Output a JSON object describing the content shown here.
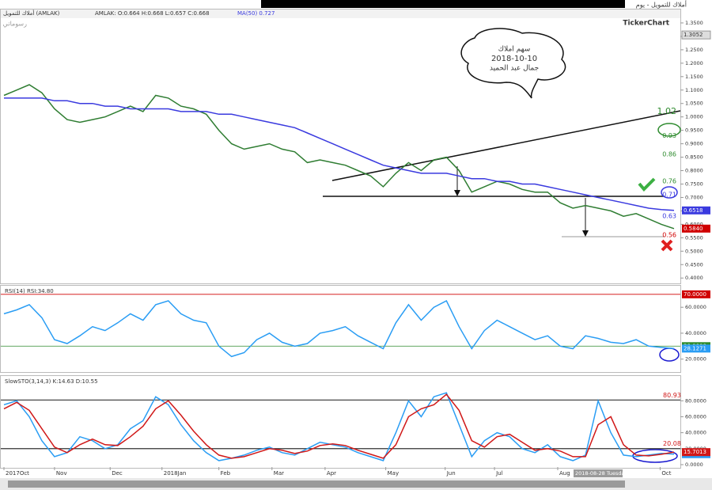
{
  "window": {
    "title": "أملاك للتمويل - يوم",
    "logo": "TickerChart",
    "drawings_tab": "رسوماتي",
    "symbol": "أملاك للتمويل (AMLAK)",
    "cursor_label": "2018-08-28 Tuesday"
  },
  "note": {
    "lines": [
      "سهم املاك",
      "2018-10-10",
      "جمال عبد الحميد"
    ]
  },
  "chart_data": [
    {
      "type": "line",
      "title": "AMLAK: O:0.664 H:0.668 L:0.657 C:0.668",
      "subtitle": "MA(50)  0.727",
      "series": [
        {
          "name": "AMLAK",
          "color": "#2f7d32",
          "values": [
            1.08,
            1.1,
            1.12,
            1.09,
            1.03,
            0.99,
            0.98,
            0.99,
            1.0,
            1.02,
            1.04,
            1.02,
            1.08,
            1.07,
            1.04,
            1.03,
            1.01,
            0.95,
            0.9,
            0.88,
            0.89,
            0.9,
            0.88,
            0.87,
            0.83,
            0.84,
            0.83,
            0.82,
            0.8,
            0.78,
            0.74,
            0.79,
            0.83,
            0.8,
            0.84,
            0.85,
            0.8,
            0.72,
            0.74,
            0.76,
            0.75,
            0.73,
            0.72,
            0.72,
            0.68,
            0.66,
            0.67,
            0.66,
            0.65,
            0.63,
            0.64,
            0.62,
            0.6,
            0.584
          ],
          "last_label": "0.5840",
          "badge": "#d00000"
        },
        {
          "name": "MA(50)",
          "color": "#3a3adf",
          "values": [
            1.07,
            1.07,
            1.07,
            1.07,
            1.06,
            1.06,
            1.05,
            1.05,
            1.04,
            1.04,
            1.03,
            1.03,
            1.03,
            1.03,
            1.02,
            1.02,
            1.02,
            1.01,
            1.01,
            1.0,
            0.99,
            0.98,
            0.97,
            0.96,
            0.94,
            0.92,
            0.9,
            0.88,
            0.86,
            0.84,
            0.82,
            0.81,
            0.8,
            0.79,
            0.79,
            0.79,
            0.78,
            0.77,
            0.77,
            0.76,
            0.76,
            0.75,
            0.75,
            0.74,
            0.73,
            0.72,
            0.71,
            0.7,
            0.69,
            0.68,
            0.67,
            0.66,
            0.655,
            0.6518
          ],
          "badge": "#3a3adf"
        }
      ],
      "ylim": [
        0.38,
        1.4
      ],
      "yticks": [
        {
          "value": 0.4,
          "label": "0.4000"
        },
        {
          "value": 0.45,
          "label": "0.4500"
        },
        {
          "value": 0.5,
          "label": "0.5000"
        },
        {
          "value": 0.55,
          "label": "0.5500"
        },
        {
          "value": 0.6,
          "label": "0.6000"
        },
        {
          "value": 0.65,
          "label": "0.6500"
        },
        {
          "value": 0.7,
          "label": "0.7000"
        },
        {
          "value": 0.75,
          "label": "0.7500"
        },
        {
          "value": 0.8,
          "label": "0.8000"
        },
        {
          "value": 0.85,
          "label": "0.8500"
        },
        {
          "value": 0.9,
          "label": "0.9000"
        },
        {
          "value": 0.95,
          "label": "0.9500"
        },
        {
          "value": 1.0,
          "label": "1.0000"
        },
        {
          "value": 1.05,
          "label": "1.0500"
        },
        {
          "value": 1.1,
          "label": "1.1000"
        },
        {
          "value": 1.15,
          "label": "1.1500"
        },
        {
          "value": 1.2,
          "label": "1.2000"
        },
        {
          "value": 1.25,
          "label": "1.2500"
        },
        {
          "value": 1.3,
          "label": "1.3000"
        },
        {
          "value": 1.35,
          "label": "1.3500"
        }
      ],
      "marker": {
        "value": 1.3052,
        "label": "1.3052"
      },
      "levels": [
        {
          "value": 1.02,
          "color": "#2e8b2e"
        },
        {
          "value": 0.93,
          "color": "#2e8b2e"
        },
        {
          "value": 0.86,
          "color": "#2e8b2e"
        },
        {
          "value": 0.76,
          "color": "#2e8b2e"
        },
        {
          "value": 0.71,
          "color": "#3a3adf"
        },
        {
          "value": 0.63,
          "color": "#3a3adf"
        },
        {
          "value": 0.56,
          "color": "#d00000"
        }
      ]
    },
    {
      "type": "line",
      "title": "RSI(14)  RSI:34.80",
      "series": [
        {
          "name": "RSI",
          "color": "#2a9df4",
          "values": [
            55,
            58,
            62,
            52,
            35,
            32,
            38,
            45,
            42,
            48,
            55,
            50,
            62,
            65,
            55,
            50,
            48,
            30,
            22,
            25,
            35,
            40,
            33,
            30,
            32,
            40,
            42,
            45,
            38,
            33,
            28,
            48,
            62,
            50,
            60,
            65,
            45,
            28,
            42,
            50,
            45,
            40,
            35,
            38,
            30,
            28,
            38,
            36,
            33,
            32,
            35,
            30,
            29,
            28.1271
          ],
          "badge": "#2a9df4"
        }
      ],
      "ylim": [
        10,
        76
      ],
      "yticks": [
        {
          "value": 20,
          "label": "20.0000"
        },
        {
          "value": 40,
          "label": "40.0000"
        },
        {
          "value": 60,
          "label": "60.0000"
        }
      ],
      "reference": [
        {
          "value": 70,
          "label": "70.0000",
          "color": "#d00000"
        },
        {
          "value": 30,
          "label": "30.0000",
          "color": "#2e8b2e"
        }
      ]
    },
    {
      "type": "line",
      "title": "SlowSTO(3,14,3)  K:14.63  D:10.55",
      "series": [
        {
          "name": "K",
          "color": "#2a9df4",
          "values": [
            75,
            80,
            60,
            30,
            10,
            15,
            35,
            30,
            20,
            25,
            45,
            55,
            85,
            75,
            50,
            30,
            15,
            5,
            8,
            12,
            18,
            22,
            15,
            12,
            20,
            28,
            25,
            22,
            15,
            10,
            5,
            40,
            80,
            60,
            85,
            90,
            50,
            10,
            30,
            40,
            35,
            20,
            15,
            25,
            10,
            5,
            12,
            80,
            40,
            12,
            10,
            12,
            14,
            13.1148
          ],
          "badge": "#2a9df4"
        },
        {
          "name": "D",
          "color": "#d01818",
          "values": [
            70,
            78,
            68,
            45,
            22,
            15,
            25,
            32,
            25,
            24,
            35,
            48,
            70,
            80,
            62,
            42,
            25,
            12,
            8,
            10,
            15,
            20,
            18,
            14,
            17,
            24,
            26,
            24,
            18,
            13,
            8,
            25,
            60,
            70,
            75,
            88,
            68,
            30,
            22,
            35,
            38,
            28,
            18,
            20,
            17,
            10,
            10,
            50,
            60,
            25,
            12,
            11,
            13,
            15.7013
          ],
          "badge": "#d01818"
        }
      ],
      "ylim": [
        -3,
        110
      ],
      "yticks": [
        {
          "value": 0,
          "label": "0.0000"
        },
        {
          "value": 20,
          "label": "20.0000"
        },
        {
          "value": 40,
          "label": "40.0000"
        },
        {
          "value": 60,
          "label": "60.0000"
        },
        {
          "value": 80,
          "label": "80.0000"
        }
      ],
      "reference": [
        {
          "value": 80.93,
          "label": "80.93",
          "color": "#333"
        },
        {
          "value": 20.08,
          "label": "20.08",
          "color": "#333"
        }
      ],
      "xticks": [
        {
          "value": 0,
          "label": "2017Oct"
        },
        {
          "value": 4,
          "label": "Nov"
        },
        {
          "value": 8.4,
          "label": "Dec"
        },
        {
          "value": 12.5,
          "label": "2018Jan"
        },
        {
          "value": 17,
          "label": "Feb"
        },
        {
          "value": 21.2,
          "label": "Mar"
        },
        {
          "value": 25.4,
          "label": "Apr"
        },
        {
          "value": 30.2,
          "label": "May"
        },
        {
          "value": 34.9,
          "label": "Jun"
        },
        {
          "value": 38.8,
          "label": "Jul"
        },
        {
          "value": 43.8,
          "label": "Aug"
        },
        {
          "value": 51.9,
          "label": "Oct"
        }
      ]
    }
  ]
}
